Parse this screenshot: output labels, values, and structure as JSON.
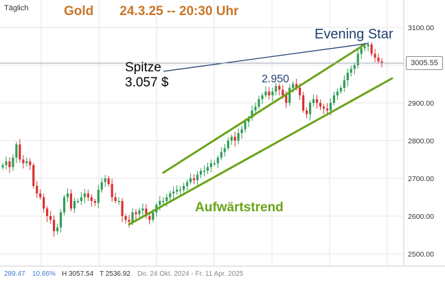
{
  "header": {
    "period": "Täglich",
    "asset": "Gold",
    "datetime": "24.3.25 -- 20:30 Uhr"
  },
  "annotations": {
    "evening_star": "Evening Star",
    "peak_line1": "Spitze",
    "peak_line2": "3.057 $",
    "level": "2.950",
    "trend": "Aufwärtstrend"
  },
  "current_price": "3005.55",
  "footer": {
    "change": "289.47",
    "change_pct": "10.66%",
    "high": "H 3057.54",
    "low": "T 2536.92",
    "range": "Do. 24 Okt. 2024 - Fr. 11 Apr. 2025"
  },
  "colors": {
    "up": "#2e9e55",
    "down": "#d93131",
    "trend": "#6aa318",
    "annotation": "#1f3f70",
    "grid": "#e6e6e6"
  },
  "chart_data": {
    "type": "candlestick",
    "title": "Gold 24.3.25 -- 20:30 Uhr",
    "ylim": [
      2460,
      3140
    ],
    "yticks": [
      2500,
      2600,
      2700,
      2800,
      2900,
      3000,
      3100
    ],
    "ytick_labels": [
      "2500.00",
      "2600.00",
      "2700.00",
      "2800.00",
      "2900.00",
      "3000.00",
      "3100.00"
    ],
    "current": 3005.55,
    "closes": [
      2735,
      2745,
      2730,
      2755,
      2790,
      2750,
      2740,
      2745,
      2735,
      2680,
      2660,
      2650,
      2620,
      2600,
      2590,
      2560,
      2570,
      2610,
      2650,
      2660,
      2620,
      2640,
      2640,
      2650,
      2660,
      2650,
      2640,
      2635,
      2670,
      2690,
      2700,
      2685,
      2650,
      2640,
      2640,
      2600,
      2590,
      2585,
      2610,
      2605,
      2615,
      2620,
      2600,
      2590,
      2610,
      2630,
      2640,
      2640,
      2650,
      2660,
      2665,
      2670,
      2670,
      2680,
      2690,
      2700,
      2695,
      2710,
      2720,
      2720,
      2730,
      2740,
      2740,
      2755,
      2770,
      2780,
      2800,
      2810,
      2800,
      2820,
      2830,
      2850,
      2860,
      2880,
      2890,
      2910,
      2920,
      2930,
      2920,
      2930,
      2945,
      2935,
      2920,
      2900,
      2940,
      2950,
      2940,
      2920,
      2880,
      2870,
      2900,
      2910,
      2900,
      2890,
      2885,
      2880,
      2900,
      2920,
      2930,
      2940,
      2960,
      2980,
      2990,
      3000,
      3030,
      3045,
      3050,
      3055,
      3030,
      3020,
      3010,
      3005
    ],
    "trend_channel": {
      "upper": {
        "from": {
          "index": 47,
          "value": 2715
        },
        "to": {
          "index": 106,
          "value": 3055
        }
      },
      "lower": {
        "from": {
          "index": 37,
          "value": 2578
        },
        "to": {
          "index": 114,
          "value": 2965
        }
      }
    },
    "peak": {
      "index": 107,
      "value": 3057.54
    },
    "period": "Do. 24 Okt. 2024 - Fr. 11 Apr. 2025"
  }
}
